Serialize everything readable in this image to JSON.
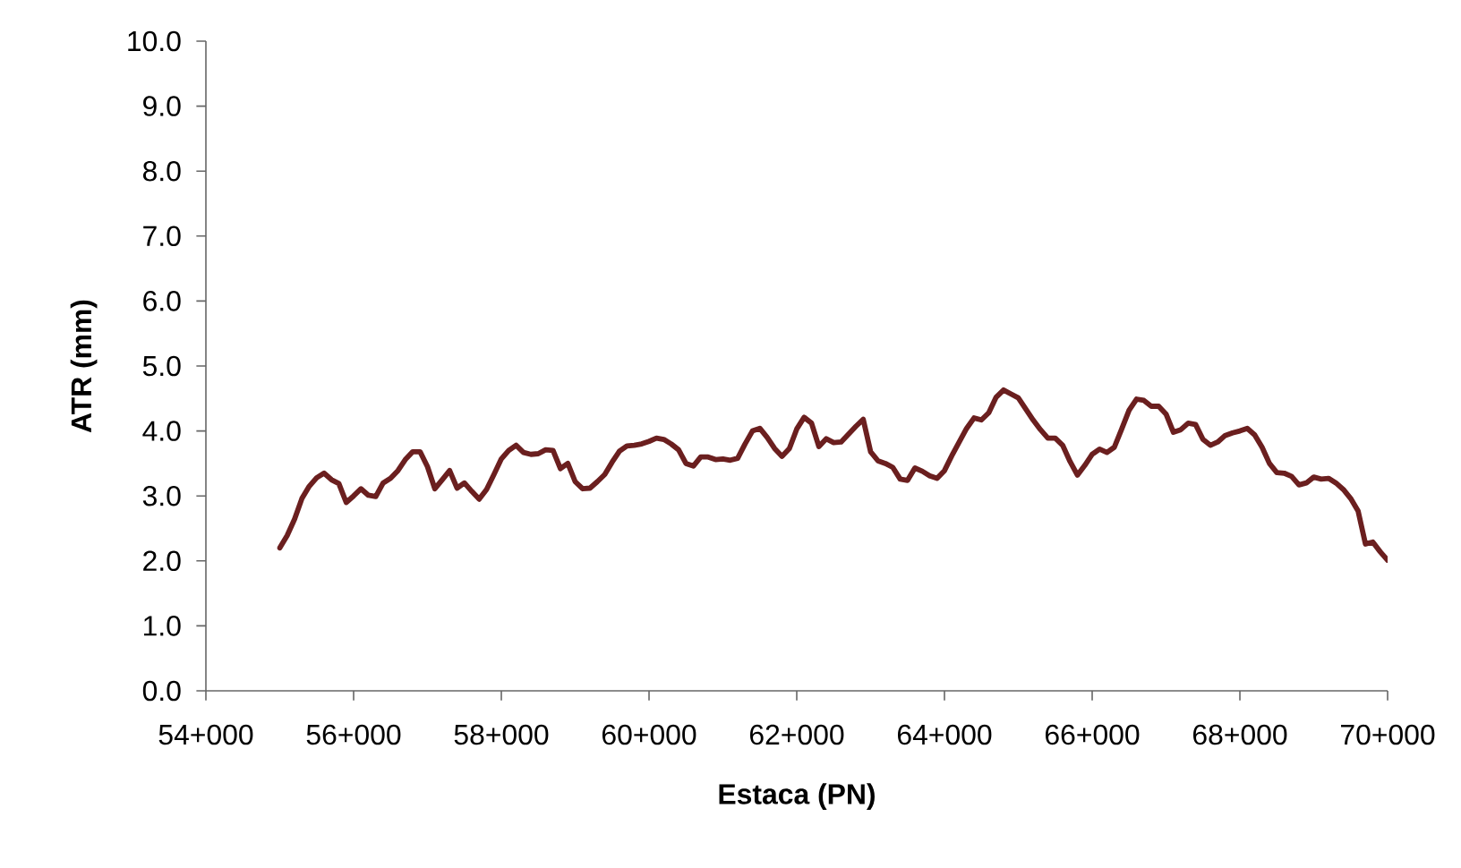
{
  "chart_data": {
    "type": "line",
    "xlabel": "Estaca (PN)",
    "ylabel": "ATR (mm)",
    "categories": [
      "54+000",
      null,
      null,
      null,
      null,
      null,
      null,
      null,
      null,
      null,
      null,
      null,
      null,
      null,
      null,
      null,
      null,
      null,
      null,
      null,
      "56+000",
      null,
      null,
      null,
      null,
      null,
      null,
      null,
      null,
      null,
      null,
      null,
      null,
      null,
      null,
      null,
      null,
      null,
      null,
      null,
      "58+000",
      null,
      null,
      null,
      null,
      null,
      null,
      null,
      null,
      null,
      null,
      null,
      null,
      null,
      null,
      null,
      null,
      null,
      null,
      null,
      "60+000",
      null,
      null,
      null,
      null,
      null,
      null,
      null,
      null,
      null,
      null,
      null,
      null,
      null,
      null,
      null,
      null,
      null,
      null,
      null,
      "62+000",
      null,
      null,
      null,
      null,
      null,
      null,
      null,
      null,
      null,
      null,
      null,
      null,
      null,
      null,
      null,
      null,
      null,
      null,
      null,
      "64+000",
      null,
      null,
      null,
      null,
      null,
      null,
      null,
      null,
      null,
      null,
      null,
      null,
      null,
      null,
      null,
      null,
      null,
      null,
      null,
      "66+000",
      null,
      null,
      null,
      null,
      null,
      null,
      null,
      null,
      null,
      null,
      null,
      null,
      null,
      null,
      null,
      null,
      null,
      null,
      null,
      "68+000",
      null,
      null,
      null,
      null,
      null,
      null,
      null,
      null,
      null,
      null,
      null,
      null,
      null,
      null,
      null,
      null,
      null,
      null,
      null,
      "70+000"
    ],
    "ylim": [
      0,
      10
    ],
    "yticks": [
      {
        "value": 0,
        "label": "0.0"
      },
      {
        "value": 1,
        "label": "1.0"
      },
      {
        "value": 2,
        "label": "2.0"
      },
      {
        "value": 3,
        "label": "3.0"
      },
      {
        "value": 4,
        "label": "4.0"
      },
      {
        "value": 5,
        "label": "5.0"
      },
      {
        "value": 6,
        "label": "6.0"
      },
      {
        "value": 7,
        "label": "7.0"
      },
      {
        "value": 8,
        "label": "8.0"
      },
      {
        "value": 9,
        "label": "9.0"
      },
      {
        "value": 10,
        "label": "10.0"
      }
    ],
    "grid": false,
    "legend": false,
    "marker": "none",
    "line_style": "solid",
    "series": [
      {
        "color": "#6b1f1f",
        "values": [
          null,
          null,
          null,
          null,
          null,
          null,
          null,
          null,
          null,
          null,
          2.2,
          2.39,
          2.64,
          2.96,
          3.15,
          3.28,
          3.35,
          3.25,
          3.19,
          2.9,
          3.0,
          3.11,
          3.01,
          2.99,
          3.2,
          3.27,
          3.39,
          3.56,
          3.68,
          3.68,
          3.45,
          3.11,
          3.25,
          3.39,
          3.12,
          3.2,
          3.07,
          2.95,
          3.1,
          3.33,
          3.57,
          3.7,
          3.78,
          3.67,
          3.64,
          3.65,
          3.71,
          3.7,
          3.42,
          3.5,
          3.22,
          3.11,
          3.12,
          3.22,
          3.33,
          3.52,
          3.69,
          3.77,
          3.78,
          3.8,
          3.84,
          3.89,
          3.87,
          3.8,
          3.71,
          3.5,
          3.46,
          3.6,
          3.6,
          3.56,
          3.57,
          3.55,
          3.58,
          3.8,
          4.0,
          4.04,
          3.9,
          3.73,
          3.61,
          3.73,
          4.03,
          4.21,
          4.12,
          3.76,
          3.88,
          3.82,
          3.83,
          3.95,
          4.07,
          4.18,
          3.68,
          3.54,
          3.5,
          3.44,
          3.26,
          3.24,
          3.43,
          3.38,
          3.31,
          3.27,
          3.39,
          3.62,
          3.83,
          4.04,
          4.2,
          4.17,
          4.28,
          4.52,
          4.63,
          4.57,
          4.51,
          4.34,
          4.17,
          4.02,
          3.89,
          3.89,
          3.78,
          3.53,
          3.32,
          3.47,
          3.64,
          3.72,
          3.67,
          3.75,
          4.03,
          4.32,
          4.49,
          4.47,
          4.38,
          4.38,
          4.26,
          3.98,
          4.02,
          4.12,
          4.1,
          3.87,
          3.78,
          3.83,
          3.93,
          3.97,
          4.0,
          4.04,
          3.94,
          3.75,
          3.5,
          3.36,
          3.35,
          3.3,
          3.17,
          3.2,
          3.29,
          3.26,
          3.27,
          3.2,
          3.1,
          2.96,
          2.77,
          2.26,
          2.29,
          2.14,
          2.01
        ]
      }
    ]
  }
}
